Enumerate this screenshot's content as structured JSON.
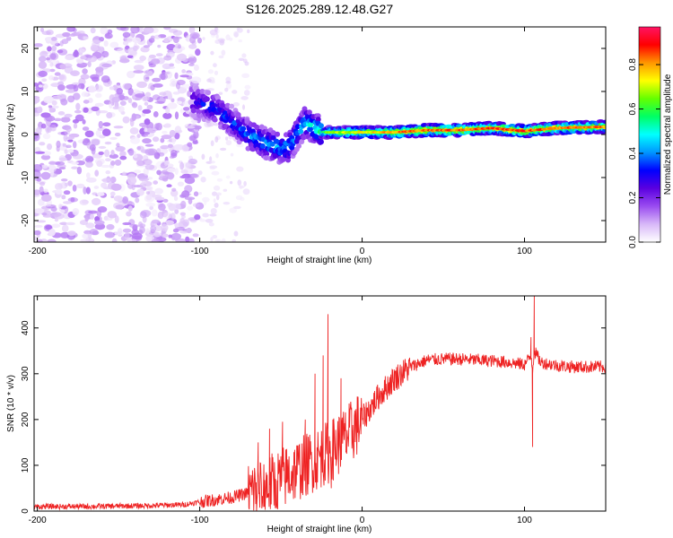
{
  "figure": {
    "title": "S126.2025.289.12.48.G27"
  },
  "chart_data": [
    {
      "type": "heatmap",
      "xlabel": "Height of straight line (km)",
      "ylabel": "Frequency (Hz)",
      "xlim": [
        -202,
        150
      ],
      "ylim": [
        -25,
        25
      ],
      "xticks": [
        -200,
        -100,
        0,
        100
      ],
      "xtick_labels": [
        "-200",
        "-100",
        "0",
        "100"
      ],
      "yticks": [
        -20,
        -10,
        0,
        10,
        20
      ],
      "ytick_labels": [
        "-20",
        "-10",
        "0",
        "10",
        "20"
      ],
      "colorbar": {
        "label": "Normalized spectral amplitude",
        "range": [
          0,
          0.97
        ],
        "ticks": [
          0,
          0.2,
          0.4,
          0.6,
          0.8
        ],
        "tick_labels": [
          "0.0",
          "0.2",
          "0.4",
          "0.6",
          "0.8"
        ],
        "colors": [
          "#ffffff",
          "#d8b8f8",
          "#9a4cf0",
          "#5a00e0",
          "#0000ff",
          "#0096ff",
          "#00ffff",
          "#00ff64",
          "#64ff00",
          "#ffff00",
          "#ff9600",
          "#ff0000",
          "#ff1464"
        ]
      },
      "ridge": {
        "x": [
          -105,
          -90,
          -80,
          -70,
          -60,
          -50,
          -45,
          -35,
          -25,
          -15,
          0,
          20,
          40,
          60,
          80,
          100,
          120,
          150
        ],
        "y": [
          8,
          6,
          3,
          0,
          -2,
          -3,
          -3,
          3,
          0.5,
          0.5,
          0.5,
          0.5,
          1,
          1,
          1.5,
          0.8,
          1.5,
          1.8
        ],
        "amplitude": [
          0.35,
          0.38,
          0.4,
          0.45,
          0.48,
          0.5,
          0.5,
          0.5,
          0.65,
          0.72,
          0.78,
          0.85,
          0.9,
          0.9,
          0.92,
          0.92,
          0.9,
          0.88
        ]
      }
    },
    {
      "type": "line",
      "xlabel": "Height of straight line (km)",
      "ylabel": "SNR (10 * v/v)",
      "xlim": [
        -202,
        150
      ],
      "ylim": [
        0,
        470
      ],
      "xticks": [
        -200,
        -100,
        0,
        100
      ],
      "xtick_labels": [
        "-200",
        "-100",
        "0",
        "100"
      ],
      "yticks": [
        0,
        100,
        200,
        300,
        400
      ],
      "ytick_labels": [
        "0",
        "100",
        "200",
        "300",
        "400"
      ],
      "color": "#ee2222",
      "series": [
        {
          "name": "SNR",
          "x": [
            -202,
            -190,
            -170,
            -150,
            -130,
            -110,
            -100,
            -90,
            -80,
            -70,
            -60,
            -50,
            -40,
            -30,
            -20,
            -10,
            0,
            10,
            20,
            30,
            40,
            50,
            60,
            70,
            80,
            90,
            100,
            104,
            105,
            106,
            110,
            120,
            130,
            140,
            150
          ],
          "y": [
            10,
            10,
            10,
            11,
            12,
            14,
            20,
            25,
            30,
            40,
            50,
            70,
            90,
            110,
            130,
            160,
            200,
            250,
            290,
            315,
            330,
            332,
            332,
            330,
            328,
            325,
            320,
            340,
            310,
            350,
            325,
            318,
            315,
            315,
            315
          ],
          "spikes": [
            {
              "x": -64,
              "y": 150
            },
            {
              "x": -57,
              "y": 180
            },
            {
              "x": -49,
              "y": 195
            },
            {
              "x": -35,
              "y": 200
            },
            {
              "x": -29,
              "y": 300
            },
            {
              "x": -24,
              "y": 340
            },
            {
              "x": -21,
              "y": 430
            },
            {
              "x": -19,
              "y": 50
            },
            {
              "x": -13,
              "y": 290
            },
            {
              "x": 104,
              "y": 380
            },
            {
              "x": 105,
              "y": 140
            },
            {
              "x": 106,
              "y": 470
            }
          ]
        }
      ]
    }
  ]
}
